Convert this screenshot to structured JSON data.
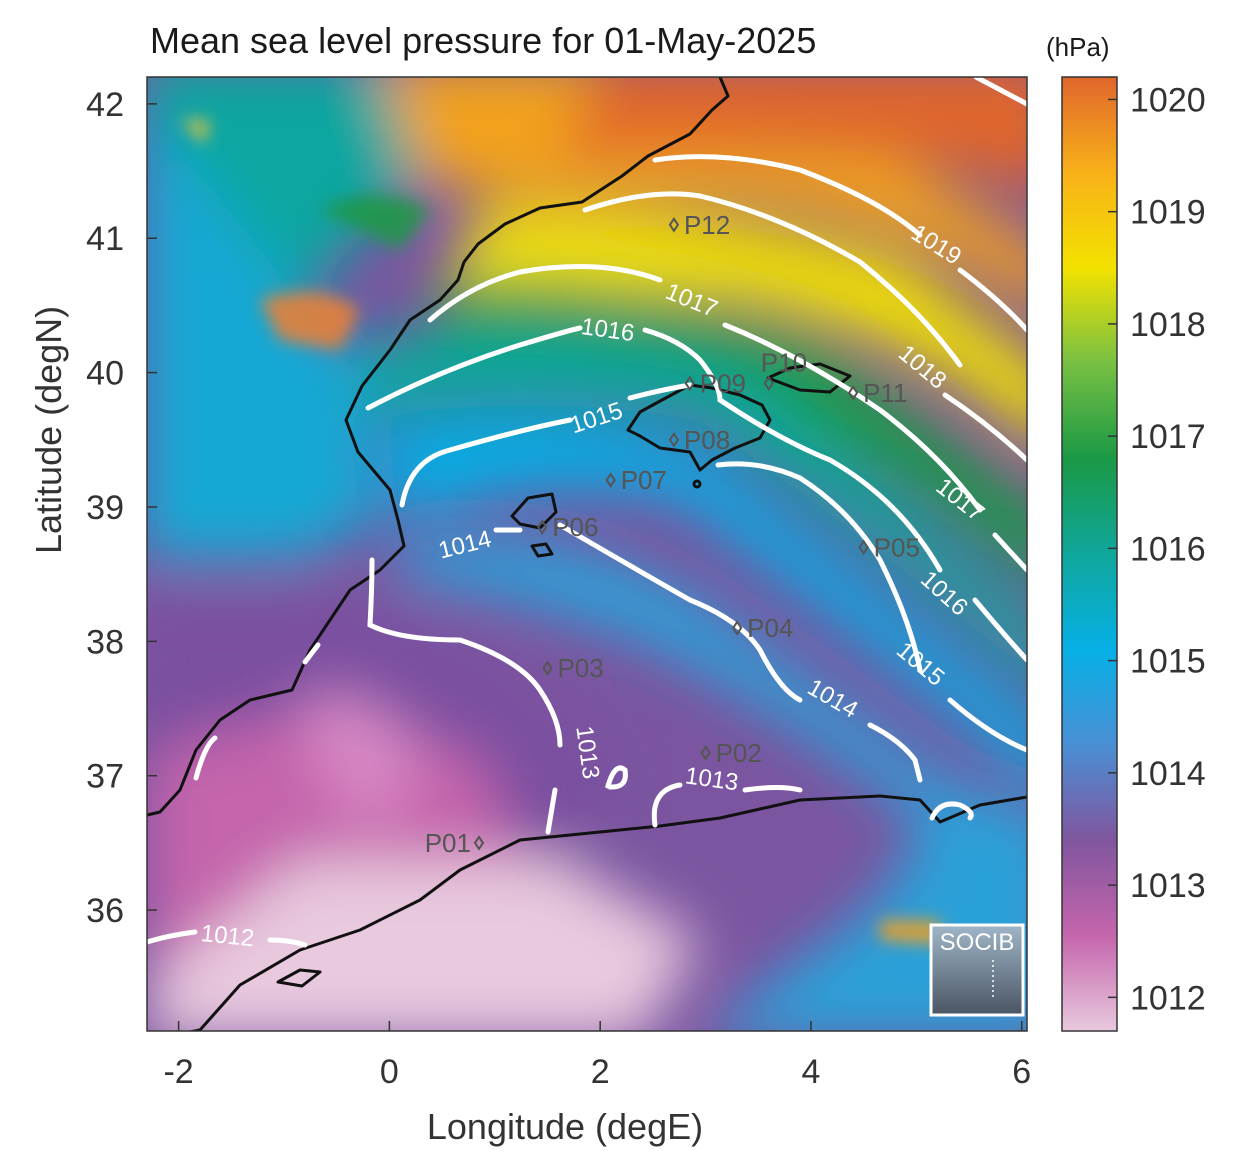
{
  "title": "Mean sea level pressure for 01-May-2025",
  "unit": "(hPa)",
  "xlabel": "Longitude (degE)",
  "ylabel": "Latitude (degN)",
  "map": {
    "lon_range": [
      -2.3,
      6.05
    ],
    "lat_range": [
      35.1,
      42.2
    ],
    "x_ticks": [
      "-2",
      "0",
      "2",
      "4",
      "6"
    ],
    "y_ticks": [
      "42",
      "41",
      "40",
      "39",
      "38",
      "37",
      "36"
    ],
    "contours": [
      {
        "label": "1012",
        "value": 1012
      },
      {
        "label": "1013",
        "value": 1013
      },
      {
        "label": "1014",
        "value": 1014
      },
      {
        "label": "1015",
        "value": 1015
      },
      {
        "label": "1016",
        "value": 1016
      },
      {
        "label": "1017",
        "value": 1017
      },
      {
        "label": "1018",
        "value": 1018
      },
      {
        "label": "1019",
        "value": 1019
      }
    ],
    "points": [
      {
        "label": "P01",
        "lon": 0.85,
        "lat": 36.5
      },
      {
        "label": "P02",
        "lon": 3.0,
        "lat": 37.17
      },
      {
        "label": "P03",
        "lon": 1.5,
        "lat": 37.8
      },
      {
        "label": "P04",
        "lon": 3.3,
        "lat": 38.1
      },
      {
        "label": "P05",
        "lon": 4.5,
        "lat": 38.7
      },
      {
        "label": "P06",
        "lon": 1.45,
        "lat": 38.85
      },
      {
        "label": "P07",
        "lon": 2.1,
        "lat": 39.2
      },
      {
        "label": "P08",
        "lon": 2.7,
        "lat": 39.5
      },
      {
        "label": "P09",
        "lon": 2.85,
        "lat": 39.92
      },
      {
        "label": "P10",
        "lon": 3.6,
        "lat": 39.92
      },
      {
        "label": "P11",
        "lon": 4.4,
        "lat": 39.85
      },
      {
        "label": "P12",
        "lon": 2.7,
        "lat": 41.1
      }
    ],
    "logo_text": "SOCIB"
  },
  "colorbar": {
    "min": 1011.7,
    "max": 1020.2,
    "ticks": [
      "1012",
      "1013",
      "1014",
      "1015",
      "1016",
      "1017",
      "1018",
      "1019",
      "1020"
    ],
    "colors": [
      "#e8c9de",
      "#c565ac",
      "#80569e",
      "#4a8fd4",
      "#06b0e6",
      "#10a79c",
      "#1a9945",
      "#77c043",
      "#f3e200",
      "#f8b119",
      "#e0662c"
    ]
  }
}
